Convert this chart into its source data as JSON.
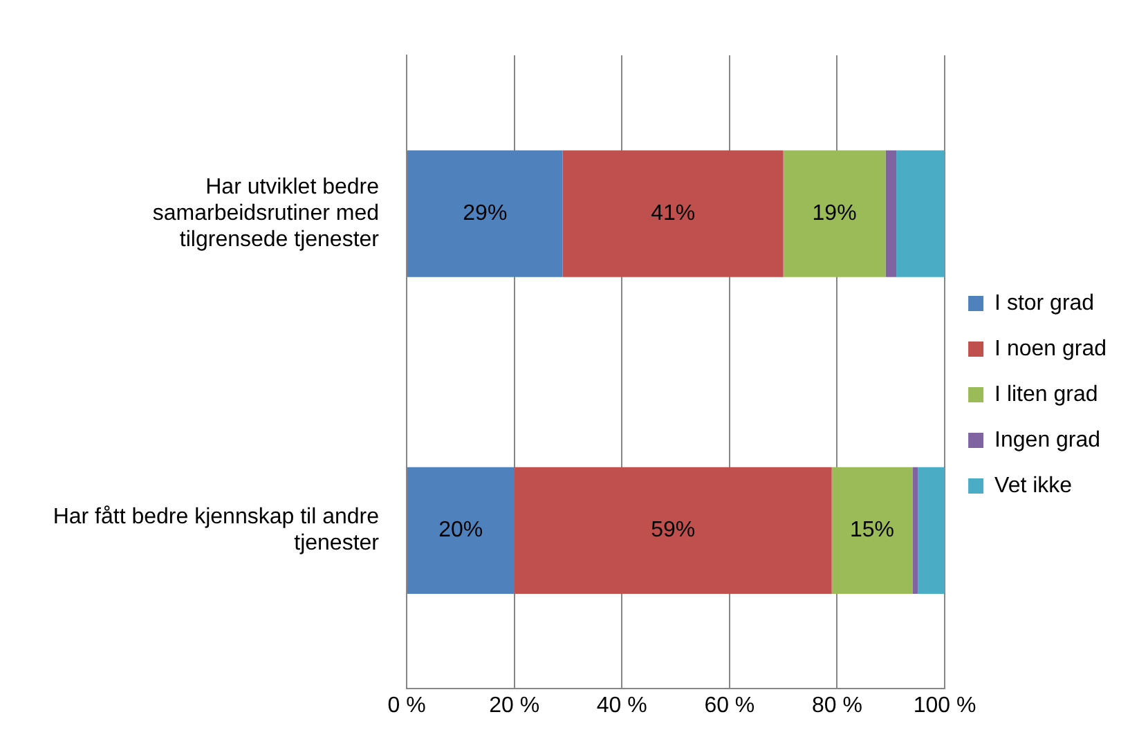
{
  "chart_data": {
    "type": "bar",
    "orientation": "horizontal",
    "stacked": true,
    "categories": [
      "Har utviklet bedre samarbeidsrutiner med tilgrensede tjenester",
      "Har fått bedre kjennskap til andre tjenester"
    ],
    "series": [
      {
        "name": "I stor grad",
        "color": "#4f81bd",
        "values": [
          29,
          20
        ],
        "value_labels": [
          "29%",
          "20%"
        ]
      },
      {
        "name": "I noen grad",
        "color": "#c0504d",
        "values": [
          41,
          59
        ],
        "value_labels": [
          "41%",
          "59%"
        ]
      },
      {
        "name": "I liten grad",
        "color": "#9bbb59",
        "values": [
          19,
          15
        ],
        "value_labels": [
          "19%",
          "15%"
        ]
      },
      {
        "name": "Ingen grad",
        "color": "#8064a2",
        "values": [
          2,
          1
        ],
        "value_labels": [
          null,
          null
        ]
      },
      {
        "name": "Vet ikke",
        "color": "#4bacc6",
        "values": [
          9,
          5
        ],
        "value_labels": [
          null,
          null
        ]
      }
    ],
    "xlim": [
      0,
      100
    ],
    "xticks": [
      {
        "value": 0,
        "label": "0 %"
      },
      {
        "value": 20,
        "label": "20 %"
      },
      {
        "value": 40,
        "label": "40 %"
      },
      {
        "value": 60,
        "label": "60 %"
      },
      {
        "value": 80,
        "label": "80 %"
      },
      {
        "value": 100,
        "label": "100 %"
      }
    ],
    "grid": "x",
    "legend": "right"
  }
}
